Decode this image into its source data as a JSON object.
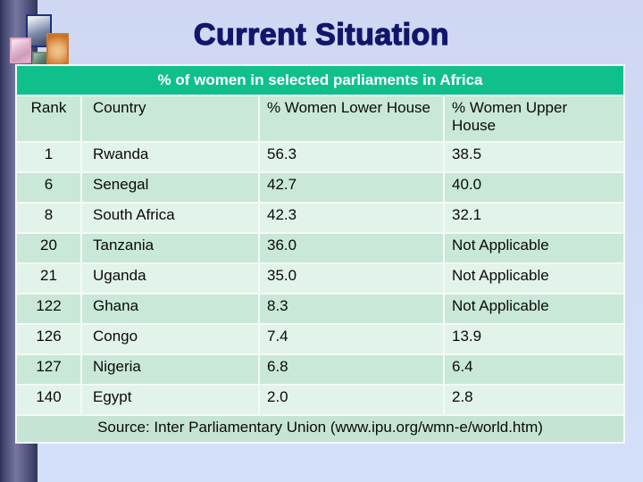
{
  "slide": {
    "title": "Current Situation"
  },
  "table": {
    "caption": "% of women in selected parliaments in Africa",
    "columns": [
      "Rank",
      "Country",
      "% Women Lower House",
      "% Women Upper House"
    ],
    "rows": [
      [
        "1",
        "Rwanda",
        "56.3",
        "38.5"
      ],
      [
        "6",
        "Senegal",
        "42.7",
        "40.0"
      ],
      [
        "8",
        "South Africa",
        "42.3",
        "32.1"
      ],
      [
        "20",
        "Tanzania",
        "36.0",
        "Not Applicable"
      ],
      [
        "21",
        "Uganda",
        "35.0",
        "Not Applicable"
      ],
      [
        "122",
        "Ghana",
        "8.3",
        "Not Applicable"
      ],
      [
        "126",
        "Congo",
        "7.4",
        "13.9"
      ],
      [
        "127",
        "Nigeria",
        "6.8",
        "6.4"
      ],
      [
        "140",
        "Egypt",
        "2.0",
        "2.8"
      ]
    ],
    "source": "Source: Inter Parliamentary Union (www.ipu.org/wmn-e/world.htm)"
  },
  "colors": {
    "accent_green": "#10C08C",
    "row_light": "#E2F3EA",
    "row_dark": "#C9E8D8",
    "source_row": "#C6E4D4",
    "title_navy": "#12166B",
    "background": "#CFD7F3",
    "band_dark": "#2E3156",
    "band_light": "#75779F"
  }
}
